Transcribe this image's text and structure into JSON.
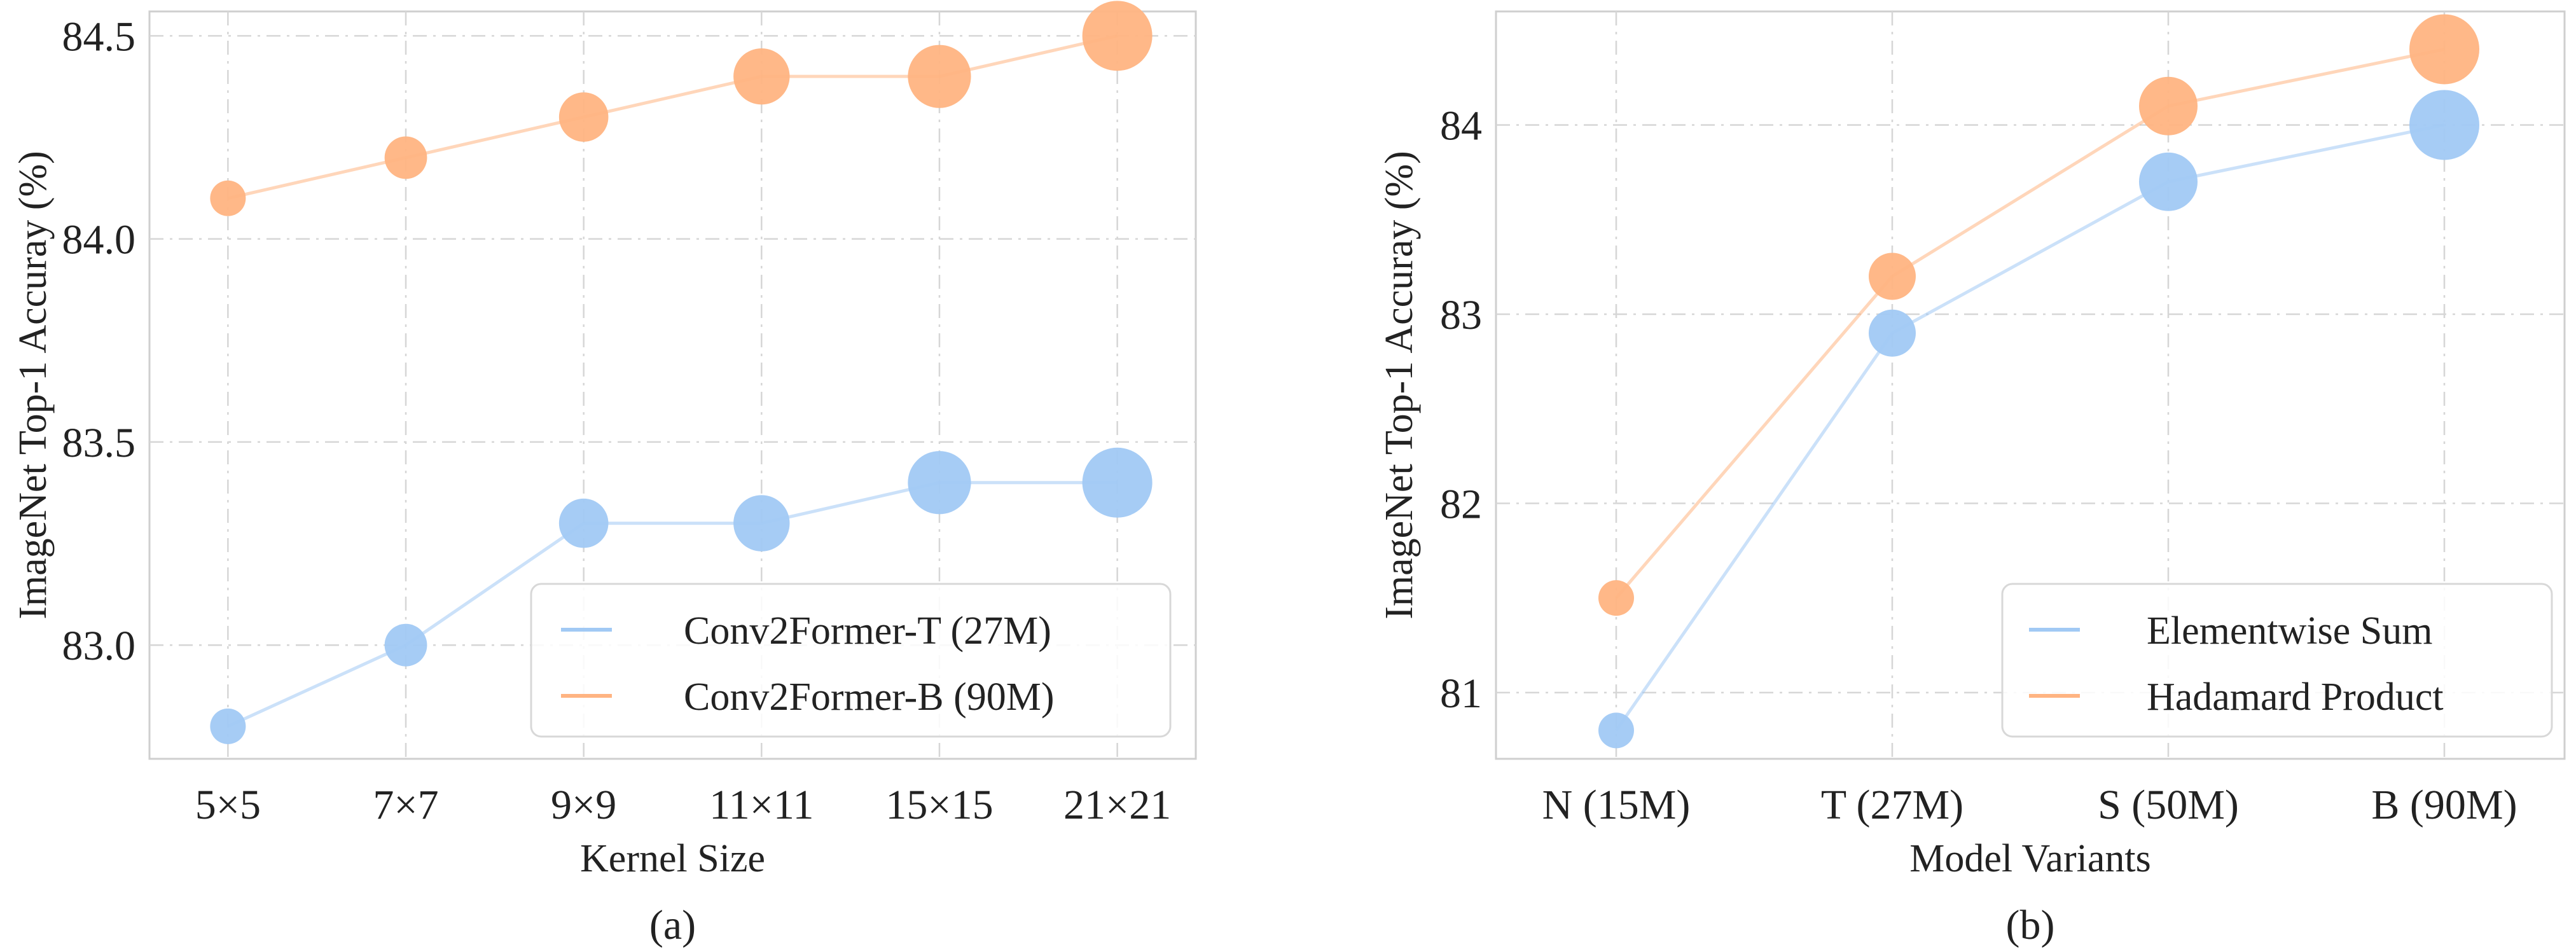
{
  "chart_data": [
    {
      "type": "scatter",
      "subtitle": "(a)",
      "xlabel": "Kernel Size",
      "ylabel": "ImageNet Top-1 Accuray (%)",
      "categories": [
        "5×5",
        "7×7",
        "9×9",
        "11×11",
        "15×15",
        "21×21"
      ],
      "yticks": [
        "83.0",
        "83.5",
        "84.0",
        "84.5"
      ],
      "ylim": [
        82.72,
        84.56
      ],
      "grid": true,
      "legend_position": "bottom-right",
      "series": [
        {
          "name": "Conv2Former-T (27M)",
          "color": "#a1c9f4",
          "values": [
            82.8,
            83.0,
            83.3,
            83.3,
            83.4,
            83.4
          ],
          "sizes": [
            1,
            2,
            3,
            4,
            5,
            6
          ]
        },
        {
          "name": "Conv2Former-B (90M)",
          "color": "#ffb482",
          "values": [
            84.1,
            84.2,
            84.3,
            84.4,
            84.4,
            84.5
          ],
          "sizes": [
            1,
            2,
            3,
            4,
            5,
            6
          ]
        }
      ]
    },
    {
      "type": "scatter",
      "subtitle": "(b)",
      "xlabel": "Model Variants",
      "ylabel": "ImageNet Top-1 Accuray (%)",
      "categories": [
        "N (15M)",
        "T (27M)",
        "S (50M)",
        "B (90M)"
      ],
      "yticks": [
        "81",
        "82",
        "83",
        "84"
      ],
      "ylim": [
        80.65,
        84.6
      ],
      "grid": true,
      "legend_position": "bottom-right",
      "series": [
        {
          "name": "Elementwise Sum",
          "color": "#a1c9f4",
          "values": [
            80.8,
            82.9,
            83.7,
            84.0
          ],
          "sizes": [
            1,
            2,
            3,
            4
          ]
        },
        {
          "name": "Hadamard Product",
          "color": "#ffb482",
          "values": [
            81.5,
            83.2,
            84.1,
            84.4
          ],
          "sizes": [
            1,
            2,
            3,
            4
          ]
        }
      ]
    }
  ]
}
